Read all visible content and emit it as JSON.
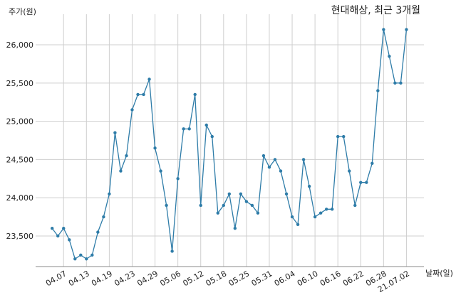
{
  "chart_data": {
    "type": "line",
    "title": "현대해상, 최근 3개월",
    "ylabel": "주가(원)",
    "xlabel": "날짜(일)",
    "ylim": [
      23100,
      26400
    ],
    "yticks": [
      23500,
      24000,
      24500,
      25000,
      25500,
      26000
    ],
    "ytick_labels": [
      "23,500",
      "24,000",
      "24,500",
      "25,000",
      "25,500",
      "26,000"
    ],
    "xtick_labels": [
      "04.07",
      "04.13",
      "04.19",
      "04.23",
      "04.29",
      "05.06",
      "05.12",
      "05.18",
      "05.25",
      "05.31",
      "06.04",
      "06.10",
      "06.16",
      "06.22",
      "06.28",
      "21.07.02"
    ],
    "xtick_indices": [
      2,
      6,
      10,
      14,
      18,
      22,
      26,
      30,
      34,
      38,
      42,
      46,
      50,
      54,
      58,
      62
    ],
    "grid": true,
    "series_color": "#2e7ca8",
    "values": [
      23600,
      23500,
      23600,
      23450,
      23200,
      23250,
      23200,
      23250,
      23550,
      23750,
      24050,
      24850,
      24350,
      24550,
      25150,
      25350,
      25350,
      25550,
      24650,
      24350,
      23900,
      23300,
      24250,
      24900,
      24900,
      25350,
      23900,
      24950,
      24800,
      23800,
      23900,
      24050,
      23600,
      24050,
      23950,
      23900,
      23800,
      24550,
      24400,
      24500,
      24350,
      24050,
      23750,
      23650,
      24500,
      24150,
      23750,
      23800,
      23850,
      23850,
      24800,
      24800,
      24350,
      23900,
      24200,
      24200,
      24450,
      25400,
      26200,
      25850,
      25500,
      25500,
      26200
    ]
  }
}
